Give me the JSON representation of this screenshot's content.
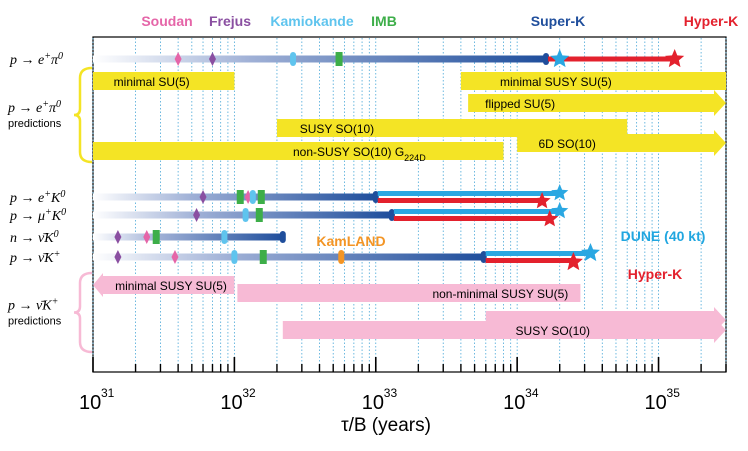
{
  "chart_data": {
    "type": "range",
    "xscale": "log",
    "xlabel": "τ/B (years)",
    "xlim": [
      1e+31,
      3e+35
    ],
    "x_ticks": [
      {
        "mant": "10",
        "exp": "31",
        "value": 1e+31
      },
      {
        "mant": "10",
        "exp": "32",
        "value": 1e+32
      },
      {
        "mant": "10",
        "exp": "33",
        "value": 1e+33
      },
      {
        "mant": "10",
        "exp": "34",
        "value": 1e+34
      },
      {
        "mant": "10",
        "exp": "35",
        "value": 1e+35
      }
    ],
    "experiments": [
      {
        "name": "Soudan",
        "color": "#e565a8",
        "at": 1.6e+31
      },
      {
        "name": "Frejus",
        "color": "#8a4fa1",
        "at": 5.8e+31
      },
      {
        "name": "Kamiokande",
        "color": "#5fc4ee",
        "at": 2e+32
      },
      {
        "name": "IMB",
        "color": "#3dae49",
        "at": 7e+32
      },
      {
        "name": "Super-K",
        "color": "#1f4e9c",
        "at": 8e+33
      },
      {
        "name": "Hyper-K",
        "color": "#e3212d",
        "at": 1.05e+35
      }
    ],
    "channels": [
      {
        "label": "p → e⁺π⁰",
        "measured": 1.6e+34,
        "markers": [
          {
            "exp": "Soudan",
            "at": 4e+31
          },
          {
            "exp": "Frejus",
            "at": 7e+31
          },
          {
            "exp": "Kamiokande",
            "at": 2.6e+32
          },
          {
            "exp": "IMB",
            "at": 5.5e+32
          }
        ],
        "superk_star": 2e+34,
        "hyperk_star": 1.3e+35
      },
      {
        "label": "p → e⁺K⁰",
        "measured": 1e+33,
        "markers": [
          {
            "exp": "Frejus",
            "at": 6e+31
          },
          {
            "exp": "IMB",
            "at": 1.1e+32
          },
          {
            "exp": "Soudan",
            "at": 1.25e+32
          },
          {
            "exp": "Kamiokande",
            "at": 1.35e+32
          },
          {
            "exp": "IMB",
            "at": 1.55e+32
          }
        ],
        "superk_star": 2e+34,
        "hyperk_star": 1.5e+34
      },
      {
        "label": "p → μ⁺K⁰",
        "measured": 1.3e+33,
        "markers": [
          {
            "exp": "Frejus",
            "at": 5.4e+31
          },
          {
            "exp": "Kamiokande",
            "at": 1.2e+32
          },
          {
            "exp": "IMB",
            "at": 1.5e+32
          }
        ],
        "superk_star": 2e+34,
        "hyperk_star": 1.7e+34
      },
      {
        "label": "n → ν̄K⁰",
        "measured": 2.2e+32,
        "markers": [
          {
            "exp": "Frejus",
            "at": 1.5e+31
          },
          {
            "exp": "Soudan",
            "at": 2.4e+31
          },
          {
            "exp": "IMB",
            "at": 2.8e+31
          },
          {
            "exp": "Kamiokande",
            "at": 8.5e+31
          }
        ]
      },
      {
        "label": "p → ν̄K⁺",
        "measured": 5.8e+33,
        "markers": [
          {
            "exp": "Frejus",
            "at": 1.5e+31
          },
          {
            "exp": "Soudan",
            "at": 3.8e+31
          },
          {
            "exp": "Kamiokande",
            "at": 1e+32
          },
          {
            "exp": "IMB",
            "at": 1.6e+32
          },
          {
            "exp": "KamLAND",
            "at": 5.7e+32
          }
        ],
        "dune_star": 3.3e+34,
        "hyperk_star": 2.5e+34
      }
    ],
    "inline_labels": [
      {
        "text": "KamLAND",
        "color": "#f39525"
      },
      {
        "text": "DUNE (40 kt)",
        "color": "#20a6e0"
      },
      {
        "text": "Hyper-K",
        "color": "#e3212d"
      }
    ],
    "groups": [
      {
        "title": "p → e⁺π⁰",
        "sub": "predictions",
        "color": "#f4e425",
        "bars": [
          {
            "text": "minimal SU(5)",
            "from": 1e+31,
            "to": 1e+32,
            "arrow": false,
            "row": 0
          },
          {
            "text": "minimal SUSY SU(5)",
            "from": 4e+33,
            "to": 3e+35,
            "arrow": false,
            "row": 0
          },
          {
            "text": "flipped SU(5)",
            "from": 4.5e+33,
            "to": 3e+35,
            "arrow": true,
            "row": 1
          },
          {
            "text": "SUSY SO(10)",
            "from": 2e+32,
            "to": 6e+34,
            "arrow": false,
            "row": 2
          },
          {
            "text": "6D SO(10)",
            "from": 1e+34,
            "to": 3e+35,
            "arrow": true,
            "row": 3
          },
          {
            "text": "non-SUSY SO(10) G224D",
            "from": 1e+31,
            "to": 8e+33,
            "arrow": false,
            "row": 4
          }
        ]
      },
      {
        "title": "p → ν̄K⁺",
        "sub": "predictions",
        "color": "#f7bad5",
        "bars": [
          {
            "text": "minimal SUSY SU(5)",
            "from": 1e+31,
            "to": 1e+32,
            "arrow": "left",
            "row": 0
          },
          {
            "text": "non-minimal SUSY SU(5)",
            "from": 1.05e+32,
            "to": 2.8e+34,
            "arrow": false,
            "row": 1
          },
          {
            "text": "",
            "from": 6e+33,
            "to": 3e+35,
            "arrow": true,
            "row": 2
          },
          {
            "text": "SUSY SO(10)",
            "from": 2.2e+32,
            "to": 3e+35,
            "arrow": true,
            "row": 3
          }
        ]
      }
    ],
    "grid": "dotted vertical"
  }
}
